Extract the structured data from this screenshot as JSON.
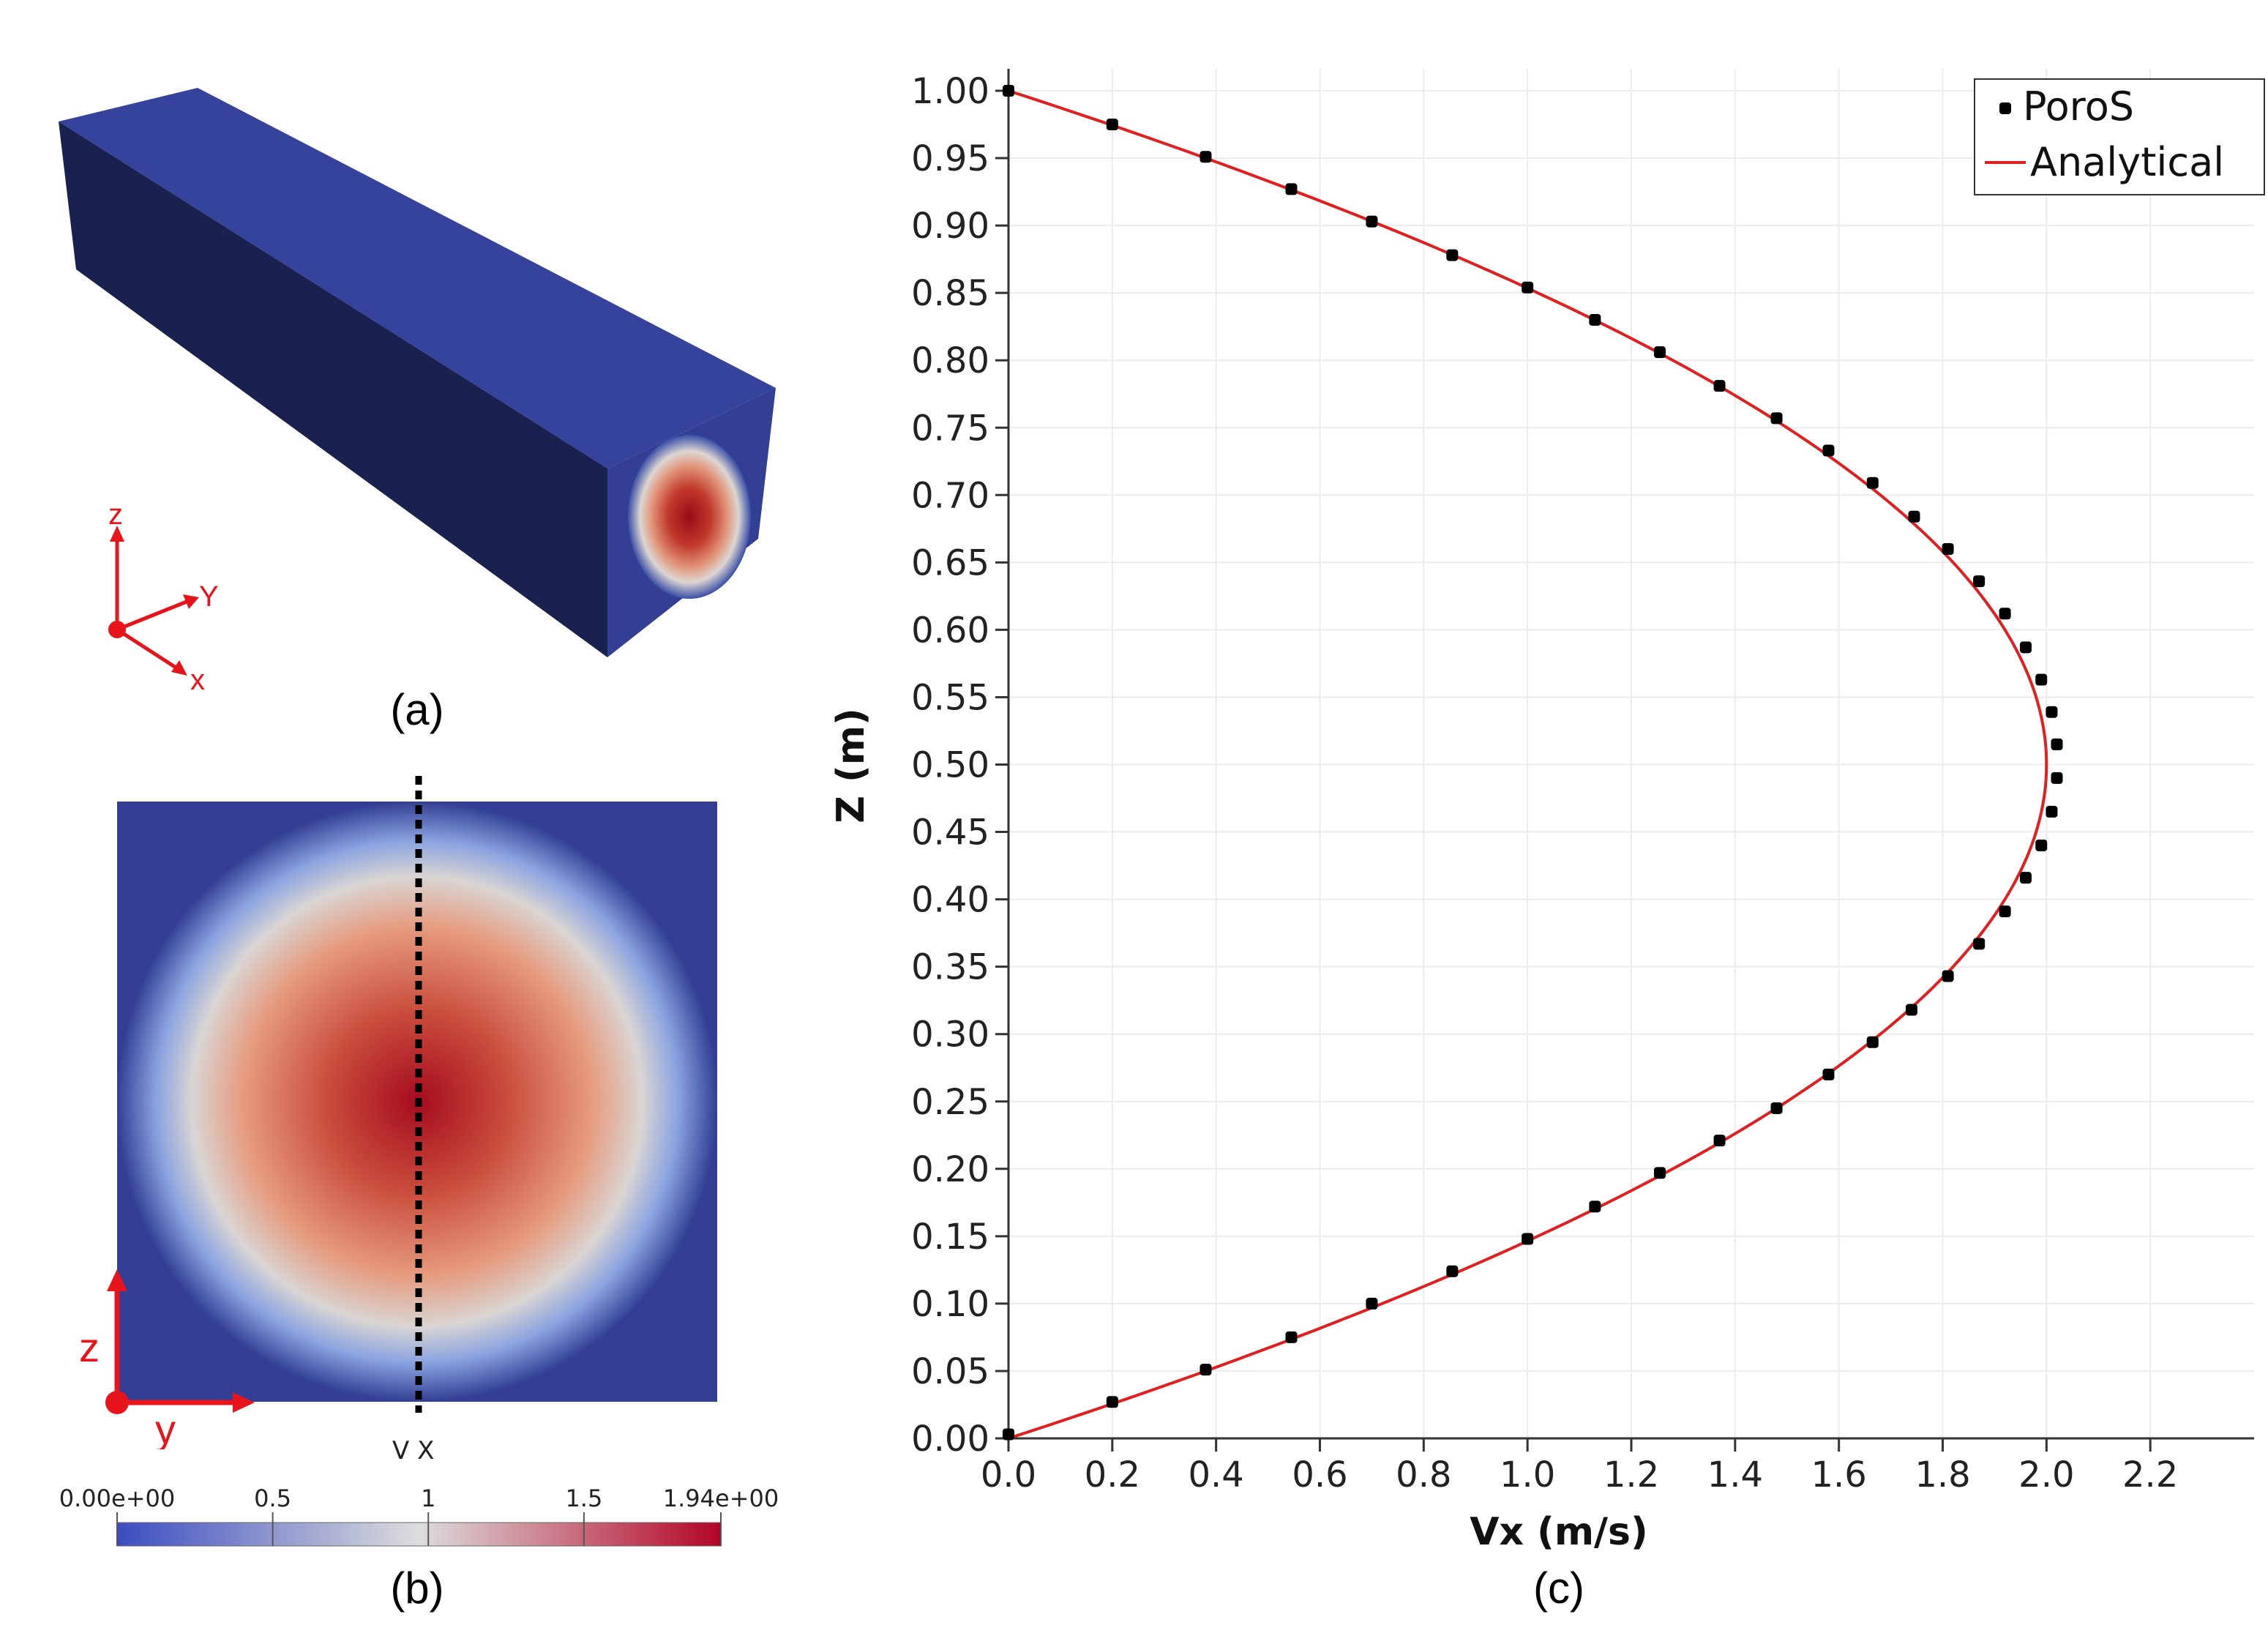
{
  "panels": {
    "a": {
      "label": "(a)"
    },
    "b": {
      "label": "(b)"
    },
    "c": {
      "label": "(c)"
    }
  },
  "axes3d": {
    "z": "z",
    "y": "Y",
    "x": "x"
  },
  "axes2d": {
    "z": "z",
    "y": "y"
  },
  "section": {
    "line_label": "V X"
  },
  "colorbar": {
    "min": 0.0,
    "max": 1.94,
    "ticks": [
      {
        "value": 0.0,
        "label": "0.00e+00"
      },
      {
        "value": 0.5,
        "label": "0.5"
      },
      {
        "value": 1.0,
        "label": "1"
      },
      {
        "value": 1.5,
        "label": "1.5"
      },
      {
        "value": 1.94,
        "label": "1.94e+00"
      }
    ],
    "colors": [
      "#3b4cc0",
      "#dddddd",
      "#b40426"
    ]
  },
  "colors": {
    "domain_blue": "#323f94",
    "domain_dark": "#19214f",
    "domain_top": "#35439c",
    "axis_red": "#e8141c",
    "analytical": "#e02020",
    "poros": "#000000"
  },
  "chart_data": {
    "type": "scatter",
    "xlabel": "Vx (m/s)",
    "ylabel": "Z (m)",
    "xlim": [
      0,
      2.4
    ],
    "ylim": [
      0,
      1.0
    ],
    "xticks": [
      0.0,
      0.2,
      0.4,
      0.6,
      0.8,
      1.0,
      1.2,
      1.4,
      1.6,
      1.8,
      2.0,
      2.2
    ],
    "xtick_labels": [
      "0.0",
      "0.2",
      "0.4",
      "0.6",
      "0.8",
      "1.0",
      "1.2",
      "1.4",
      "1.6",
      "1.8",
      "2.0",
      "2.2"
    ],
    "yticks": [
      0.0,
      0.05,
      0.1,
      0.15,
      0.2,
      0.25,
      0.3,
      0.35,
      0.4,
      0.45,
      0.5,
      0.55,
      0.6,
      0.65,
      0.7,
      0.75,
      0.8,
      0.85,
      0.9,
      0.95,
      1.0
    ],
    "ytick_labels": [
      "0.00",
      "0.05",
      "0.10",
      "0.15",
      "0.20",
      "0.25",
      "0.30",
      "0.35",
      "0.40",
      "0.45",
      "0.50",
      "0.55",
      "0.60",
      "0.65",
      "0.70",
      "0.75",
      "0.80",
      "0.85",
      "0.90",
      "0.95",
      "1.00"
    ],
    "grid": true,
    "legend": "top-right",
    "series": [
      {
        "name": "PoroS",
        "marker": "square",
        "x": [
          0.0,
          0.2,
          0.38,
          0.545,
          0.7,
          0.855,
          1.0,
          1.13,
          1.255,
          1.37,
          1.48,
          1.58,
          1.665,
          1.745,
          1.81,
          1.87,
          1.92,
          1.96,
          1.99,
          2.01,
          2.02,
          2.02,
          2.01,
          1.99,
          1.96,
          1.92,
          1.87,
          1.81,
          1.74,
          1.665,
          1.58,
          1.48,
          1.37,
          1.255,
          1.13,
          1.0,
          0.855,
          0.7,
          0.545,
          0.38,
          0.2,
          0.0
        ],
        "y": [
          1.0,
          0.975,
          0.951,
          0.927,
          0.903,
          0.878,
          0.854,
          0.83,
          0.806,
          0.781,
          0.757,
          0.733,
          0.709,
          0.684,
          0.66,
          0.636,
          0.612,
          0.587,
          0.563,
          0.539,
          0.515,
          0.49,
          0.465,
          0.44,
          0.416,
          0.391,
          0.367,
          0.343,
          0.318,
          0.294,
          0.27,
          0.245,
          0.221,
          0.197,
          0.172,
          0.148,
          0.124,
          0.1,
          0.075,
          0.051,
          0.027,
          0.003
        ]
      },
      {
        "name": "Analytical",
        "type": "line",
        "model": "Vx = 8.0 * z * (1 - z)"
      }
    ]
  }
}
